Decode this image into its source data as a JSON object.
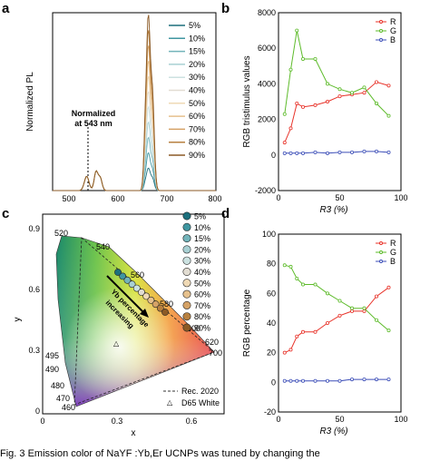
{
  "caption": "Fig. 3   Emission color of NaYF :Yb,Er UCNPs was tuned by changing the",
  "colors": {
    "R": "#e8332a",
    "G": "#5dbb2a",
    "B": "#3d4fb8"
  },
  "panels": {
    "a": {
      "letter": "a",
      "ylabel": "Normalized PL",
      "annotation": [
        "Normalized",
        "at 543 nm"
      ],
      "legend": [
        "5%",
        "10%",
        "15%",
        "20%",
        "30%",
        "40%",
        "50%",
        "60%",
        "70%",
        "80%",
        "90%"
      ],
      "xticks": [
        "500",
        "600",
        "700",
        "800"
      ],
      "legend_colors": [
        "#1c6f7c",
        "#3f96a0",
        "#73b4ba",
        "#a8d0d3",
        "#cce2e1",
        "#e2ddd2",
        "#efd9b5",
        "#e6c18d",
        "#d5a266",
        "#b7803f",
        "#8b5a26"
      ]
    },
    "b": {
      "letter": "b",
      "ylabel": "RGB tristimulus values",
      "xlabel": "R3 (%)",
      "yticks": [
        "8000",
        "6000",
        "4000",
        "2000",
        "0",
        "-2000"
      ],
      "xticks": [
        "0",
        "50",
        "100"
      ],
      "legend": [
        "R",
        "G",
        "B"
      ]
    },
    "c": {
      "letter": "c",
      "xlabel": "x",
      "ylabel": "y",
      "yticks": [
        "0.9",
        "0.6",
        "0.3",
        "0"
      ],
      "xticks": [
        "0",
        "0.3",
        "0.6"
      ],
      "wavelengths": [
        "520",
        "540",
        "560",
        "580",
        "600",
        "620",
        "700",
        "495",
        "490",
        "480",
        "470",
        "460"
      ],
      "arrow_text": [
        "Yb percentage",
        "increasing"
      ],
      "legend": [
        "5%",
        "10%",
        "15%",
        "20%",
        "30%",
        "40%",
        "50%",
        "60%",
        "70%",
        "80%",
        "90%"
      ],
      "legend_colors": [
        "#1c6f7c",
        "#3f96a0",
        "#73b4ba",
        "#a8d0d3",
        "#cce2e1",
        "#e2ddd2",
        "#efd9b5",
        "#e6c18d",
        "#d5a266",
        "#b7803f",
        "#8b5a26"
      ],
      "bottom_legend": [
        "Rec. 2020",
        "D65 White"
      ]
    },
    "d": {
      "letter": "d",
      "ylabel": "RGB percentage",
      "xlabel": "R3 (%)",
      "yticks": [
        "100",
        "80",
        "60",
        "40",
        "20",
        "0",
        "-20"
      ],
      "xticks": [
        "0",
        "50",
        "100"
      ],
      "legend": [
        "R",
        "G",
        "B"
      ]
    }
  },
  "chart_data": [
    {
      "type": "line",
      "panel": "b",
      "x": [
        5,
        10,
        15,
        20,
        30,
        40,
        50,
        60,
        70,
        80,
        90
      ],
      "xlim": [
        0,
        100
      ],
      "ylim": [
        -2000,
        8000
      ],
      "series": [
        {
          "name": "R",
          "values": [
            700,
            1500,
            2900,
            2700,
            2800,
            3000,
            3300,
            3400,
            3500,
            4100,
            3900
          ]
        },
        {
          "name": "G",
          "values": [
            2300,
            4800,
            7000,
            5400,
            5400,
            4000,
            3700,
            3500,
            3800,
            2900,
            2200
          ]
        },
        {
          "name": "B",
          "values": [
            100,
            100,
            100,
            100,
            150,
            100,
            150,
            150,
            200,
            200,
            150
          ]
        }
      ]
    },
    {
      "type": "line",
      "panel": "d",
      "x": [
        5,
        10,
        15,
        20,
        30,
        40,
        50,
        60,
        70,
        80,
        90
      ],
      "xlim": [
        0,
        100
      ],
      "ylim": [
        -20,
        100
      ],
      "series": [
        {
          "name": "R",
          "values": [
            20,
            22,
            31,
            34,
            34,
            40,
            45,
            48,
            48,
            58,
            64
          ]
        },
        {
          "name": "G",
          "values": [
            79,
            78,
            70,
            66,
            66,
            60,
            55,
            50,
            50,
            42,
            35
          ]
        },
        {
          "name": "B",
          "values": [
            1,
            1,
            1,
            1,
            1,
            1,
            1,
            2,
            2,
            2,
            2
          ]
        }
      ]
    }
  ]
}
